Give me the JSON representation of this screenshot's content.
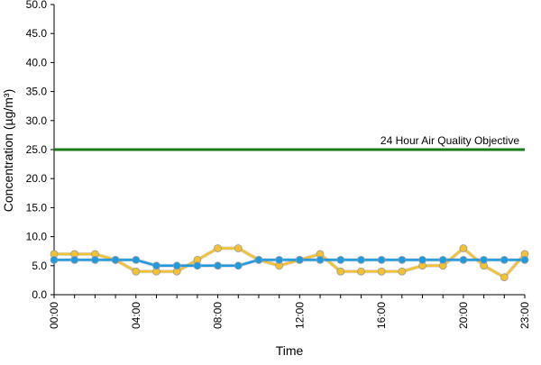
{
  "chart_data": {
    "type": "line",
    "title": "",
    "xlabel": "Time",
    "ylabel": "Concentration (µg/m³)",
    "ylim": [
      0,
      50
    ],
    "y_ticks": [
      "0.0",
      "5.0",
      "10.0",
      "15.0",
      "20.0",
      "25.0",
      "30.0",
      "35.0",
      "40.0",
      "45.0",
      "50.0"
    ],
    "x_ticks": [
      "00:00",
      "04:00",
      "08:00",
      "12:00",
      "16:00",
      "20:00",
      "23:00"
    ],
    "x": [
      0,
      1,
      2,
      3,
      4,
      5,
      6,
      7,
      8,
      9,
      10,
      11,
      12,
      13,
      14,
      15,
      16,
      17,
      18,
      19,
      20,
      21,
      22,
      23
    ],
    "series": [
      {
        "color": "#f2c230",
        "values": [
          7,
          7,
          7,
          6,
          4,
          4,
          4,
          6,
          8,
          8,
          6,
          5,
          6,
          7,
          4,
          4,
          4,
          4,
          5,
          5,
          8,
          5,
          3,
          7
        ]
      },
      {
        "color": "#1e9be0",
        "values": [
          6,
          6,
          6,
          6,
          6,
          5,
          5,
          5,
          5,
          5,
          6,
          6,
          6,
          6,
          6,
          6,
          6,
          6,
          6,
          6,
          6,
          6,
          6,
          6
        ]
      }
    ],
    "objective": {
      "value": 25,
      "label": "24 Hour Air Quality Objective",
      "color": "#1a7a1a"
    },
    "grid": false,
    "legend": "none"
  }
}
